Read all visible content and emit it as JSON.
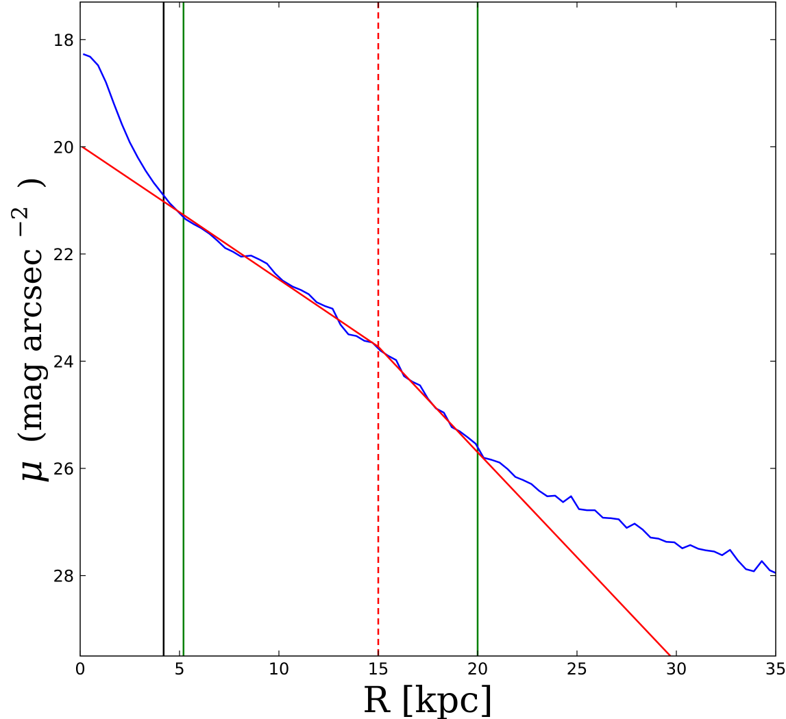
{
  "chart_data": {
    "type": "line",
    "xlabel": "R [kpc]",
    "ylabel": {
      "symbol": "μ",
      "text": "(mag arcsec",
      "superscript": "−2",
      "close": ")"
    },
    "xlim": [
      0,
      35
    ],
    "ylim": [
      29.5,
      17.3
    ],
    "y_inverted": true,
    "grid": false,
    "xticks": [
      0,
      5,
      10,
      15,
      20,
      25,
      30,
      35
    ],
    "yticks": [
      18,
      20,
      22,
      24,
      26,
      28
    ],
    "colors": {
      "profile": "#0000ff",
      "fit": "#ff0000",
      "black_line": "#000000",
      "green_lines": "#008000",
      "dashed_line": "#ff0000"
    },
    "vertical_lines": [
      {
        "x": 4.2,
        "color": "#000000",
        "style": "solid"
      },
      {
        "x": 5.2,
        "color": "#008000",
        "style": "solid"
      },
      {
        "x": 20.0,
        "color": "#008000",
        "style": "solid"
      },
      {
        "x": 15.0,
        "color": "#ff0000",
        "style": "dashed"
      }
    ],
    "series": [
      {
        "color": "#0000ff",
        "x": [
          0.15,
          0.5,
          0.9,
          1.3,
          1.7,
          2.1,
          2.5,
          2.9,
          3.3,
          3.7,
          4.1,
          4.5,
          4.9,
          5.3,
          5.7,
          6.1,
          6.5,
          6.9,
          7.3,
          7.7,
          8.1,
          8.6,
          9.0,
          9.4,
          9.8,
          10.2,
          10.7,
          11.1,
          11.5,
          11.9,
          12.3,
          12.7,
          13.1,
          13.5,
          13.9,
          14.3,
          14.7,
          15.1,
          15.5,
          15.9,
          16.3,
          16.7,
          17.1,
          17.5,
          17.9,
          18.3,
          18.7,
          19.1,
          19.5,
          19.9,
          20.3,
          20.7,
          21.1,
          21.5,
          21.9,
          22.3,
          22.7,
          23.1,
          23.5,
          23.9,
          24.3,
          24.7,
          25.1,
          25.5,
          25.9,
          26.3,
          26.7,
          27.1,
          27.5,
          27.9,
          28.3,
          28.7,
          29.1,
          29.5,
          29.9,
          30.3,
          30.7,
          31.1,
          31.5,
          31.9,
          32.3,
          32.7,
          33.1,
          33.5,
          33.9,
          34.3,
          34.7,
          35.0
        ],
        "y": [
          18.27,
          18.32,
          18.48,
          18.8,
          19.2,
          19.58,
          19.92,
          20.2,
          20.45,
          20.67,
          20.86,
          21.05,
          21.2,
          21.35,
          21.44,
          21.52,
          21.62,
          21.75,
          21.89,
          21.96,
          22.05,
          22.03,
          22.1,
          22.18,
          22.36,
          22.5,
          22.61,
          22.67,
          22.75,
          22.9,
          22.97,
          23.02,
          23.32,
          23.5,
          23.53,
          23.62,
          23.65,
          23.8,
          23.9,
          23.98,
          24.28,
          24.38,
          24.45,
          24.7,
          24.88,
          24.96,
          25.23,
          25.31,
          25.42,
          25.54,
          25.8,
          25.84,
          25.89,
          26.01,
          26.16,
          26.22,
          26.29,
          26.42,
          26.52,
          26.51,
          26.63,
          26.52,
          26.76,
          26.78,
          26.78,
          26.92,
          26.93,
          26.95,
          27.11,
          27.03,
          27.14,
          27.29,
          27.31,
          27.37,
          27.38,
          27.49,
          27.43,
          27.5,
          27.53,
          27.55,
          27.62,
          27.52,
          27.72,
          27.88,
          27.92,
          27.73,
          27.9,
          27.95
        ]
      },
      {
        "color": "#ff0000",
        "x": [
          0.1,
          5.2,
          15.0,
          20.0,
          29.7
        ],
        "y": [
          20.0,
          21.27,
          23.73,
          25.7,
          29.5
        ]
      }
    ]
  }
}
